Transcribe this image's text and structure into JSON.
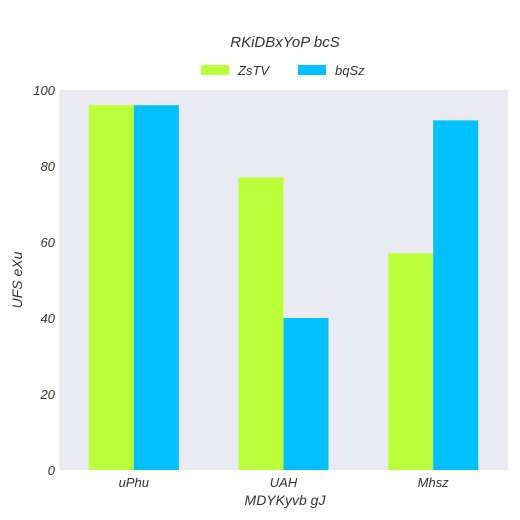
{
  "chart_data": {
    "type": "bar",
    "title": "RKiDBxYoP bcS",
    "xlabel": "MDYKyvb   gJ",
    "ylabel": "UFS eXu",
    "categories": [
      "uPhu",
      "UAH",
      "Mhsz"
    ],
    "series": [
      {
        "name": "ZsTV",
        "values": [
          96,
          77,
          57
        ],
        "color": "#bbff3a"
      },
      {
        "name": "bqSz",
        "values": [
          96,
          40,
          92
        ],
        "color": "#00c0ff"
      }
    ],
    "ylim": [
      0,
      100
    ],
    "yticks": [
      0,
      20,
      40,
      60,
      80,
      100
    ],
    "grid": false,
    "legend_position": "top-center",
    "plot_background": "#eaeaf2"
  }
}
